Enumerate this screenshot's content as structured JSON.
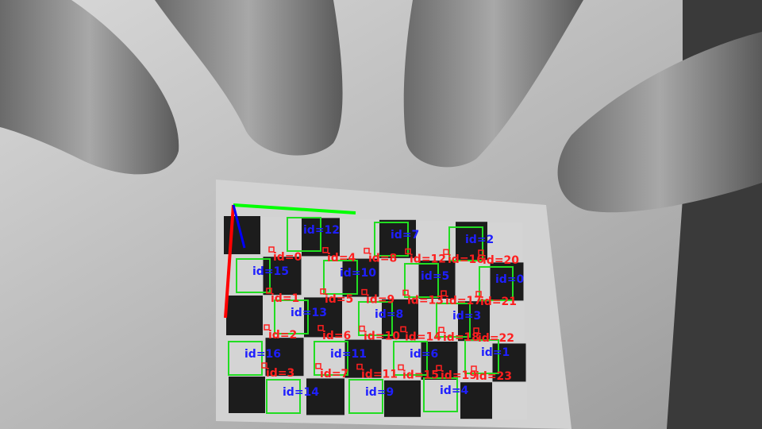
{
  "colors": {
    "marker_id": "#1f1fff",
    "corner_id": "#ff1f1f",
    "marker_outline": "#22dd22",
    "axis_x": "#00ff00",
    "axis_y": "#ff0000",
    "axis_z": "#0000ff"
  },
  "aruco_markers": [
    {
      "label": "id=12"
    },
    {
      "label": "id=7"
    },
    {
      "label": "id=2"
    },
    {
      "label": "id=15"
    },
    {
      "label": "id=10"
    },
    {
      "label": "id=5"
    },
    {
      "label": "id=0"
    },
    {
      "label": "id=13"
    },
    {
      "label": "id=8"
    },
    {
      "label": "id=3"
    },
    {
      "label": "id=16"
    },
    {
      "label": "id=11"
    },
    {
      "label": "id=6"
    },
    {
      "label": "id=1"
    },
    {
      "label": "id=14"
    },
    {
      "label": "id=9"
    },
    {
      "label": "id=4"
    }
  ],
  "charuco_corners": [
    {
      "label": "id=0"
    },
    {
      "label": "id=4"
    },
    {
      "label": "id=8"
    },
    {
      "label": "id=12"
    },
    {
      "label": "id=16"
    },
    {
      "label": "id=20"
    },
    {
      "label": "id=1"
    },
    {
      "label": "id=5"
    },
    {
      "label": "id=9"
    },
    {
      "label": "id=13"
    },
    {
      "label": "id=17"
    },
    {
      "label": "id=21"
    },
    {
      "label": "id=2"
    },
    {
      "label": "id=6"
    },
    {
      "label": "id=10"
    },
    {
      "label": "id=14"
    },
    {
      "label": "id=18"
    },
    {
      "label": "id=22"
    },
    {
      "label": "id=3"
    },
    {
      "label": "id=7"
    },
    {
      "label": "id=11"
    },
    {
      "label": "id=15"
    },
    {
      "label": "id=19"
    },
    {
      "label": "id=23"
    }
  ]
}
